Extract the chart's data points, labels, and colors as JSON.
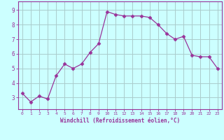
{
  "x": [
    0,
    1,
    2,
    3,
    4,
    5,
    6,
    7,
    8,
    9,
    10,
    11,
    12,
    13,
    14,
    15,
    16,
    17,
    18,
    19,
    20,
    21,
    22,
    23
  ],
  "y": [
    3.3,
    2.7,
    3.1,
    2.9,
    4.5,
    5.3,
    5.0,
    5.3,
    6.1,
    6.7,
    8.9,
    8.7,
    8.6,
    8.6,
    8.6,
    8.5,
    8.0,
    7.4,
    7.0,
    7.2,
    5.9,
    5.8,
    5.8,
    5.0
  ],
  "line_color": "#993399",
  "marker": "D",
  "marker_size": 2.5,
  "bg_color": "#ccffff",
  "grid_color": "#aacccc",
  "xlabel": "Windchill (Refroidissement éolien,°C)",
  "xlabel_color": "#993399",
  "tick_color": "#993399",
  "yticks": [
    3,
    4,
    5,
    6,
    7,
    8,
    9
  ],
  "xlim": [
    -0.5,
    23.5
  ],
  "ylim": [
    2.2,
    9.6
  ]
}
